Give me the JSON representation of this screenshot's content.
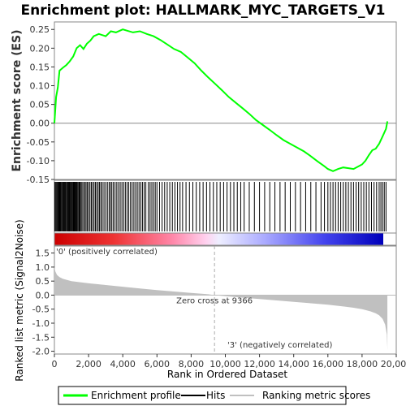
{
  "chart_data": {
    "type": "line",
    "title": "Enrichment plot: HALLMARK_MYC_TARGETS_V1",
    "es_panel": {
      "ylabel": "Enrichment score (ES)",
      "ylim": [
        -0.15,
        0.27
      ],
      "yticks": [
        "-0.15",
        "-0.10",
        "-0.05",
        "0.00",
        "0.05",
        "0.10",
        "0.15",
        "0.20",
        "0.25"
      ],
      "ytick_values": [
        -0.15,
        -0.1,
        -0.05,
        0.0,
        0.05,
        0.1,
        0.15,
        0.2,
        0.25
      ],
      "series": [
        {
          "name": "Enrichment profile",
          "color": "#00ff00",
          "x": [
            0,
            100,
            200,
            300,
            500,
            700,
            900,
            1100,
            1300,
            1500,
            1700,
            1900,
            2100,
            2300,
            2600,
            3000,
            3300,
            3600,
            4000,
            4300,
            4600,
            5000,
            5400,
            5800,
            6200,
            6600,
            7000,
            7400,
            7800,
            8200,
            8600,
            9000,
            9400,
            9800,
            10200,
            10600,
            11000,
            11400,
            11800,
            12200,
            12600,
            13000,
            13400,
            13800,
            14200,
            14600,
            15000,
            15400,
            15800,
            16000,
            16300,
            16600,
            16900,
            17200,
            17500,
            17800,
            18000,
            18200,
            18400,
            18600,
            18800,
            19000,
            19200,
            19400,
            19480
          ],
          "y": [
            0.0,
            0.07,
            0.095,
            0.14,
            0.148,
            0.155,
            0.165,
            0.178,
            0.2,
            0.208,
            0.198,
            0.212,
            0.22,
            0.232,
            0.238,
            0.232,
            0.245,
            0.242,
            0.25,
            0.246,
            0.242,
            0.245,
            0.238,
            0.232,
            0.222,
            0.21,
            0.198,
            0.19,
            0.175,
            0.16,
            0.14,
            0.122,
            0.105,
            0.088,
            0.07,
            0.055,
            0.04,
            0.025,
            0.008,
            -0.005,
            -0.018,
            -0.032,
            -0.045,
            -0.055,
            -0.065,
            -0.075,
            -0.088,
            -0.102,
            -0.115,
            -0.122,
            -0.128,
            -0.122,
            -0.118,
            -0.12,
            -0.122,
            -0.115,
            -0.11,
            -0.1,
            -0.085,
            -0.072,
            -0.068,
            -0.055,
            -0.035,
            -0.015,
            0.005
          ]
        }
      ]
    },
    "hits_panel": {
      "hit_label": "Hits",
      "gene_positions": [
        20,
        60,
        110,
        160,
        210,
        260,
        300,
        330,
        370,
        420,
        470,
        520,
        560,
        600,
        640,
        700,
        740,
        790,
        830,
        880,
        920,
        960,
        1010,
        1050,
        1100,
        1140,
        1180,
        1220,
        1260,
        1300,
        1340,
        1390,
        1450,
        1500,
        1560,
        1620,
        1700,
        1780,
        1850,
        1920,
        2000,
        2080,
        2160,
        2240,
        2320,
        2400,
        2480,
        2560,
        2640,
        2720,
        2800,
        2900,
        3000,
        3100,
        3200,
        3280,
        3360,
        3450,
        3550,
        3650,
        3750,
        3850,
        3950,
        4050,
        4150,
        4250,
        4350,
        4450,
        4550,
        4650,
        4750,
        4850,
        4950,
        5050,
        5150,
        5250,
        5350,
        5500,
        5600,
        5700,
        5800,
        5900,
        6000,
        6150,
        6300,
        6450,
        6600,
        6750,
        6900,
        7050,
        7200,
        7350,
        7500,
        7700,
        7900,
        8100,
        8300,
        8500,
        8700,
        8900,
        9100,
        9300,
        9500,
        9700,
        9900,
        10100,
        10300,
        10500,
        10700,
        10900,
        11100,
        11400,
        11700,
        12000,
        12300,
        12600,
        12900,
        13200,
        13500,
        13800,
        14100,
        14400,
        14700,
        15000,
        15300,
        15600,
        15800,
        16000,
        16150,
        16300,
        16450,
        16600,
        16750,
        16900,
        17050,
        17200,
        17350,
        17500,
        17650,
        17800,
        17950,
        18100,
        18250,
        18400,
        18550,
        18700,
        18850,
        19000,
        19100,
        19200,
        19300,
        19400
      ]
    },
    "metric_panel": {
      "ylabel": "Ranked list metric (Signal2Noise)",
      "xlabel": "Rank in Ordered Dataset",
      "ylim": [
        -2.1,
        1.75
      ],
      "yticks": [
        "-2.0",
        "-1.5",
        "-1.0",
        "-0.5",
        "0.0",
        "0.5",
        "1.0",
        "1.5"
      ],
      "ytick_values": [
        -2.0,
        -1.5,
        -1.0,
        -0.5,
        0.0,
        0.5,
        1.0,
        1.5
      ],
      "xticks": [
        "0",
        "2,000",
        "4,000",
        "6,000",
        "8,000",
        "10,000",
        "12,000",
        "14,000",
        "16,000",
        "18,000",
        "20,000"
      ],
      "xtick_values": [
        0,
        2000,
        4000,
        6000,
        8000,
        10000,
        12000,
        14000,
        16000,
        18000,
        20000
      ],
      "xlim": [
        0,
        20000
      ],
      "metric_x": [
        0,
        50,
        150,
        300,
        500,
        1000,
        2000,
        3000,
        4000,
        5000,
        6000,
        7000,
        8000,
        9000,
        9366,
        10000,
        11000,
        12000,
        13000,
        14000,
        15000,
        16000,
        17000,
        17500,
        18000,
        18500,
        18800,
        19000,
        19200,
        19350,
        19450,
        19480
      ],
      "metric_y": [
        1.0,
        0.85,
        0.72,
        0.64,
        0.58,
        0.5,
        0.42,
        0.36,
        0.3,
        0.24,
        0.18,
        0.13,
        0.08,
        0.03,
        0.0,
        -0.04,
        -0.09,
        -0.14,
        -0.19,
        -0.24,
        -0.29,
        -0.34,
        -0.41,
        -0.45,
        -0.5,
        -0.58,
        -0.65,
        -0.72,
        -0.85,
        -1.05,
        -1.4,
        -1.95
      ],
      "zero_cross_rank": 9366,
      "zero_cross_label": "Zero cross at 9366",
      "positive_label": "'0' (positively correlated)",
      "negative_label": "'3' (negatively correlated)",
      "positive_color": "#cc0000",
      "negative_color": "#0000cc"
    },
    "legend": {
      "items": [
        {
          "label": "Enrichment profile",
          "color": "#00ff00"
        },
        {
          "label": "Hits",
          "color": "#000000"
        },
        {
          "label": "Ranking metric scores",
          "color": "#c0c0c0"
        }
      ]
    },
    "total_rank": 19480
  }
}
